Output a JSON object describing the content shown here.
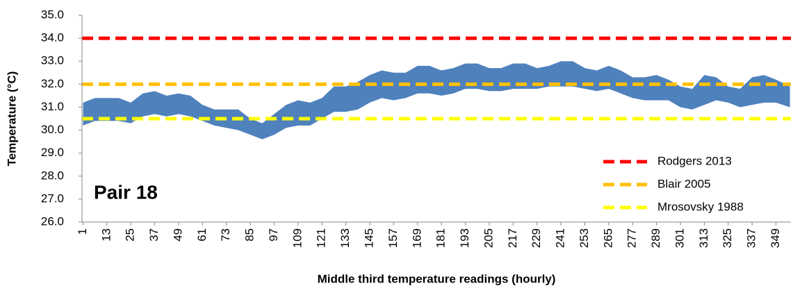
{
  "chart_data": {
    "type": "range-area",
    "x_label": "Middle third temperature readings (hourly)",
    "y_label": "Temperature (°C)",
    "annotation": "Pair 18",
    "xlim": [
      0.5,
      356.5
    ],
    "xticks": [
      1,
      13,
      25,
      37,
      49,
      61,
      73,
      85,
      97,
      109,
      121,
      133,
      145,
      157,
      169,
      181,
      193,
      205,
      217,
      229,
      241,
      253,
      265,
      277,
      289,
      301,
      313,
      325,
      337,
      349
    ],
    "ylim": [
      26,
      35
    ],
    "yticks": [
      {
        "value": 26,
        "label": "26.0"
      },
      {
        "value": 27,
        "label": "27.0"
      },
      {
        "value": 28,
        "label": "28.0"
      },
      {
        "value": 29,
        "label": "29.0"
      },
      {
        "value": 30,
        "label": "30.0"
      },
      {
        "value": 31,
        "label": "31.0"
      },
      {
        "value": 32,
        "label": "32.0"
      },
      {
        "value": 33,
        "label": "33.0"
      },
      {
        "value": 34,
        "label": "34.0"
      },
      {
        "value": 35,
        "label": "35.0"
      }
    ],
    "band": {
      "color": "#4f81bd",
      "x": [
        1,
        7,
        19,
        25,
        31,
        37,
        43,
        49,
        55,
        61,
        67,
        73,
        79,
        85,
        91,
        97,
        103,
        109,
        115,
        121,
        127,
        133,
        139,
        145,
        151,
        157,
        163,
        169,
        175,
        181,
        187,
        193,
        199,
        205,
        211,
        217,
        223,
        229,
        235,
        241,
        247,
        253,
        259,
        265,
        271,
        277,
        283,
        289,
        295,
        301,
        307,
        313,
        319,
        325,
        331,
        337,
        343,
        349,
        356
      ],
      "low": [
        30.2,
        30.4,
        30.4,
        30.3,
        30.6,
        30.7,
        30.6,
        30.7,
        30.6,
        30.4,
        30.2,
        30.1,
        30.0,
        29.8,
        29.6,
        29.8,
        30.1,
        30.2,
        30.2,
        30.5,
        30.8,
        30.8,
        30.9,
        31.2,
        31.4,
        31.3,
        31.4,
        31.6,
        31.6,
        31.5,
        31.6,
        31.8,
        31.8,
        31.7,
        31.7,
        31.8,
        31.8,
        31.8,
        31.9,
        31.9,
        31.9,
        31.8,
        31.7,
        31.8,
        31.6,
        31.4,
        31.3,
        31.3,
        31.3,
        31.0,
        30.9,
        31.1,
        31.3,
        31.2,
        31.0,
        31.1,
        31.2,
        31.2,
        31.0
      ],
      "high": [
        31.2,
        31.4,
        31.4,
        31.2,
        31.6,
        31.7,
        31.5,
        31.6,
        31.5,
        31.1,
        30.9,
        30.9,
        30.9,
        30.5,
        30.3,
        30.7,
        31.1,
        31.3,
        31.2,
        31.4,
        31.9,
        31.9,
        32.1,
        32.4,
        32.6,
        32.5,
        32.5,
        32.8,
        32.8,
        32.6,
        32.7,
        32.9,
        32.9,
        32.7,
        32.7,
        32.9,
        32.9,
        32.7,
        32.8,
        33.0,
        33.0,
        32.7,
        32.6,
        32.8,
        32.6,
        32.3,
        32.3,
        32.4,
        32.2,
        31.9,
        31.8,
        32.4,
        32.3,
        31.9,
        31.8,
        32.3,
        32.4,
        32.2,
        31.9
      ]
    },
    "reference_lines": [
      {
        "name": "Rodgers 2013",
        "color": "#ff0000",
        "value": 34.0
      },
      {
        "name": "Blair 2005",
        "color": "#ffc000",
        "value": 32.0
      },
      {
        "name": "Mrosovsky 1988",
        "color": "#ffff00",
        "value": 30.5
      }
    ],
    "legend": "lower-right"
  }
}
